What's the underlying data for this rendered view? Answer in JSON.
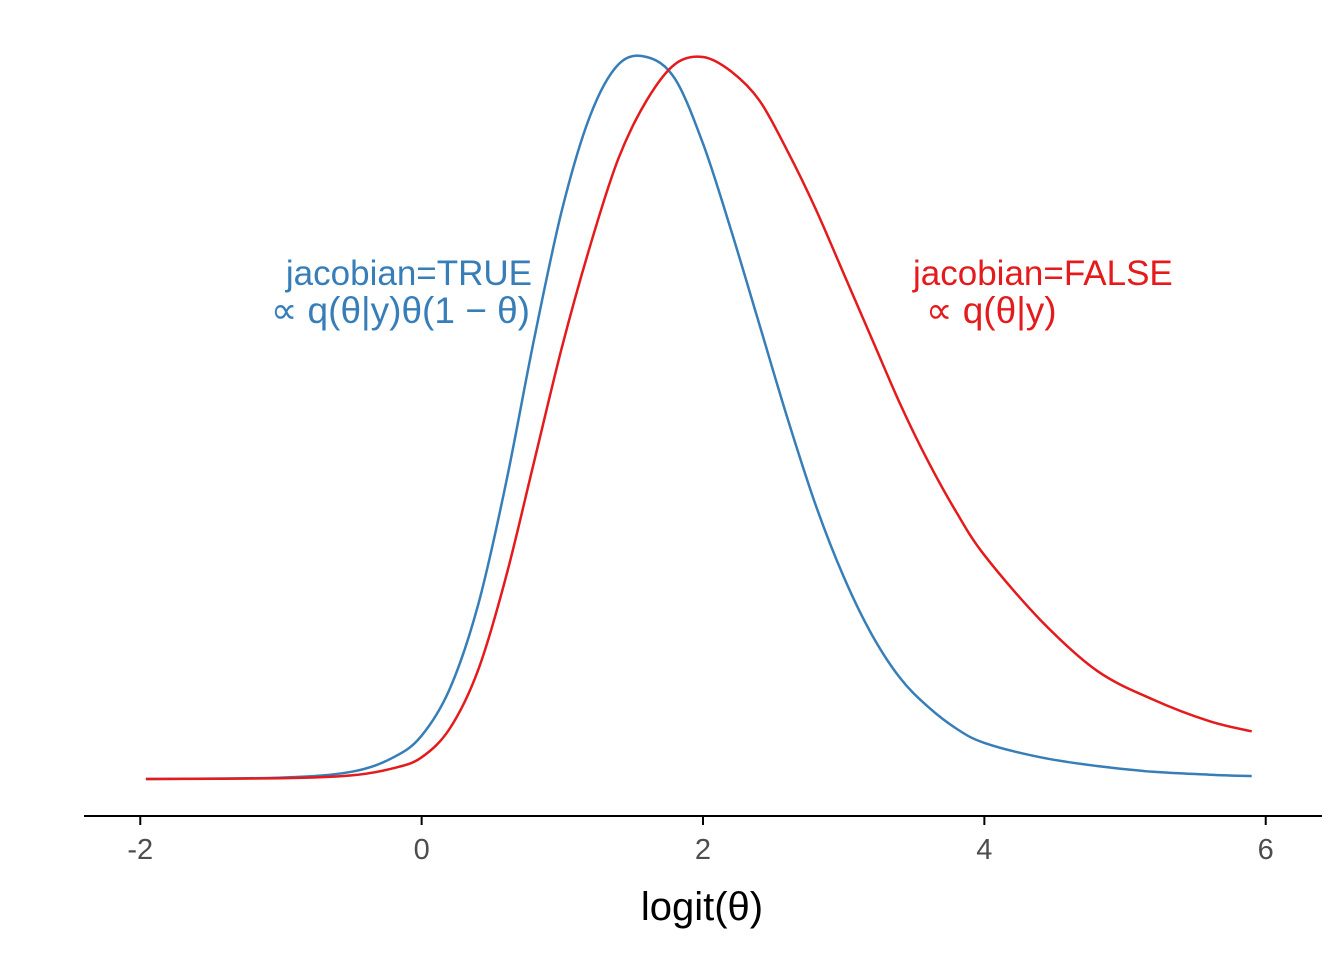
{
  "chart_data": {
    "type": "line",
    "xlabel": "logit(θ)",
    "ylabel": "",
    "xlim": [
      -2.4,
      6.4
    ],
    "ylim": [
      0,
      1.05
    ],
    "xticks": [
      "-2",
      "0",
      "2",
      "4",
      "6"
    ],
    "grid": false,
    "y_axis_shown": false,
    "legend": "none",
    "series": [
      {
        "key": "true",
        "color": "#377eb8",
        "x": [
          -1.96,
          -1.0,
          -0.5,
          -0.2,
          0.0,
          0.2,
          0.4,
          0.6,
          0.8,
          1.0,
          1.2,
          1.4,
          1.6,
          1.8,
          2.0,
          2.2,
          2.4,
          2.6,
          2.8,
          3.0,
          3.2,
          3.4,
          3.6,
          3.8,
          4.0,
          4.4,
          4.8,
          5.2,
          5.6,
          5.9
        ],
        "y": [
          0.0,
          0.002,
          0.01,
          0.03,
          0.06,
          0.125,
          0.24,
          0.41,
          0.61,
          0.79,
          0.92,
          0.99,
          1.0,
          0.97,
          0.88,
          0.76,
          0.63,
          0.5,
          0.38,
          0.28,
          0.2,
          0.14,
          0.1,
          0.07,
          0.05,
          0.03,
          0.018,
          0.01,
          0.006,
          0.004
        ]
      },
      {
        "key": "false",
        "color": "#e41a1c",
        "x": [
          -1.96,
          -1.0,
          -0.5,
          -0.2,
          0.0,
          0.2,
          0.4,
          0.6,
          0.8,
          1.0,
          1.2,
          1.4,
          1.6,
          1.8,
          2.0,
          2.2,
          2.4,
          2.6,
          2.8,
          3.0,
          3.2,
          3.4,
          3.6,
          3.8,
          4.0,
          4.4,
          4.8,
          5.2,
          5.6,
          5.9
        ],
        "y": [
          0.0,
          0.001,
          0.005,
          0.015,
          0.03,
          0.07,
          0.15,
          0.28,
          0.44,
          0.6,
          0.74,
          0.86,
          0.94,
          0.99,
          1.0,
          0.98,
          0.94,
          0.87,
          0.79,
          0.7,
          0.61,
          0.52,
          0.44,
          0.37,
          0.31,
          0.22,
          0.15,
          0.11,
          0.08,
          0.066
        ]
      }
    ],
    "annotations": [
      {
        "key": "true",
        "color": "#377eb8",
        "label": "jacobian=TRUE",
        "formula": "∝ q(θ|y)θ(1 − θ)",
        "anchor_x": 1.95,
        "anchor_y": 0.67
      },
      {
        "key": "false",
        "color": "#e41a1c",
        "label": "jacobian=FALSE",
        "formula": "∝ q(θ|y)",
        "anchor_x": 3.5,
        "anchor_y": 0.67
      }
    ]
  }
}
